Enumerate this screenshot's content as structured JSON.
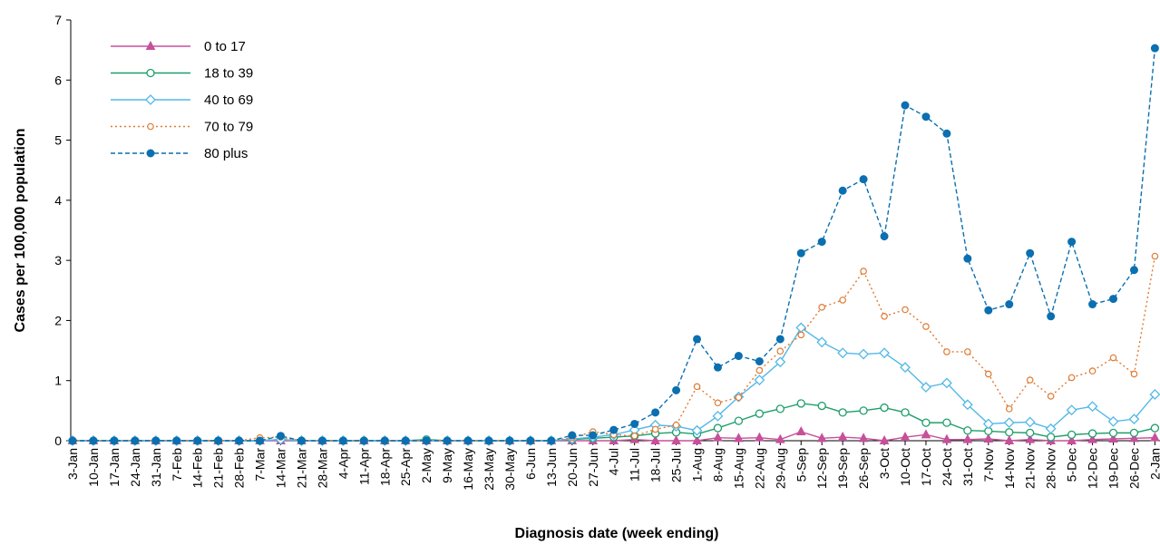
{
  "chart_data": {
    "type": "line",
    "title": "",
    "xlabel": "Diagnosis date (week ending)",
    "ylabel": "Cases per 100,000 population",
    "ylim": [
      0,
      7
    ],
    "yticks": [
      "0",
      "1",
      "2",
      "3",
      "4",
      "5",
      "6",
      "7"
    ],
    "grid": false,
    "legend_position": "top-left",
    "categories": [
      "3-Jan",
      "10-Jan",
      "17-Jan",
      "24-Jan",
      "31-Jan",
      "7-Feb",
      "14-Feb",
      "21-Feb",
      "28-Feb",
      "7-Mar",
      "14-Mar",
      "21-Mar",
      "28-Mar",
      "4-Apr",
      "11-Apr",
      "18-Apr",
      "25-Apr",
      "2-May",
      "9-May",
      "16-May",
      "23-May",
      "30-May",
      "6-Jun",
      "13-Jun",
      "20-Jun",
      "27-Jun",
      "4-Jul",
      "11-Jul",
      "18-Jul",
      "25-Jul",
      "1-Aug",
      "8-Aug",
      "15-Aug",
      "22-Aug",
      "29-Aug",
      "5-Sep",
      "12-Sep",
      "19-Sep",
      "26-Sep",
      "3-Oct",
      "10-Oct",
      "17-Oct",
      "24-Oct",
      "31-Oct",
      "7-Nov",
      "14-Nov",
      "21-Nov",
      "28-Nov",
      "5-Dec",
      "12-Dec",
      "19-Dec",
      "26-Dec",
      "2-Jan"
    ],
    "series": [
      {
        "name": "0 to 17",
        "color": "#c6509a",
        "marker": "triangle",
        "dash": "solid",
        "values": [
          0,
          0,
          0,
          0,
          0,
          0,
          0,
          0,
          0,
          0,
          0,
          0,
          0,
          0,
          0,
          0,
          0,
          0,
          0,
          0,
          0,
          0,
          0,
          0,
          0,
          0,
          0,
          0.02,
          0,
          0,
          0,
          0.05,
          0.04,
          0.05,
          0.02,
          0.15,
          0.04,
          0.06,
          0.04,
          0,
          0.06,
          0.1,
          0.02,
          0.02,
          0.03,
          0,
          0.02,
          0,
          0,
          0.02,
          0.03,
          0.04,
          0.05
        ]
      },
      {
        "name": "18 to 39",
        "color": "#1e9e6a",
        "marker": "circle-open",
        "dash": "solid",
        "values": [
          0,
          0,
          0,
          0,
          0,
          0,
          0,
          0,
          0,
          0,
          0.02,
          0,
          0,
          0,
          0,
          0,
          0,
          0.02,
          0,
          0,
          0,
          0,
          0,
          0,
          0.02,
          0.04,
          0.06,
          0.08,
          0.12,
          0.14,
          0.11,
          0.21,
          0.33,
          0.45,
          0.53,
          0.62,
          0.58,
          0.47,
          0.5,
          0.55,
          0.47,
          0.3,
          0.3,
          0.17,
          0.16,
          0.14,
          0.13,
          0.06,
          0.1,
          0.12,
          0.13,
          0.13,
          0.21
        ]
      },
      {
        "name": "40 to 69",
        "color": "#52b8e8",
        "marker": "diamond-open",
        "dash": "solid",
        "values": [
          0,
          0,
          0,
          0,
          0,
          0,
          0,
          0,
          0,
          0,
          0.02,
          0,
          0,
          0,
          0,
          0,
          0,
          0,
          0,
          0,
          0,
          0,
          0,
          0,
          0.03,
          0.06,
          0.1,
          0.18,
          0.26,
          0.24,
          0.17,
          0.41,
          0.73,
          1.01,
          1.31,
          1.88,
          1.64,
          1.46,
          1.44,
          1.46,
          1.22,
          0.89,
          0.96,
          0.6,
          0.28,
          0.3,
          0.31,
          0.2,
          0.51,
          0.57,
          0.32,
          0.36,
          0.77
        ]
      },
      {
        "name": "70 to 79",
        "color": "#e07a33",
        "marker": "circle-open-small",
        "dash": "dotted",
        "values": [
          0,
          0,
          0,
          0,
          0,
          0,
          0,
          0,
          0,
          0.05,
          0.06,
          0,
          0,
          0,
          0,
          0,
          0,
          0,
          0,
          0,
          0,
          0,
          0,
          0,
          0.05,
          0.15,
          0.1,
          0.08,
          0.19,
          0.26,
          0.9,
          0.63,
          0.72,
          1.17,
          1.49,
          1.76,
          2.22,
          2.34,
          2.82,
          2.07,
          2.18,
          1.9,
          1.48,
          1.48,
          1.11,
          0.53,
          1.01,
          0.74,
          1.05,
          1.16,
          1.38,
          1.11,
          3.07
        ]
      },
      {
        "name": "80 plus",
        "color": "#0b6fb0",
        "marker": "circle-filled",
        "dash": "dashed",
        "values": [
          0,
          0,
          0,
          0,
          0,
          0,
          0,
          0,
          0,
          0,
          0.08,
          0,
          0,
          0,
          0,
          0,
          0,
          0,
          0,
          0,
          0,
          0,
          0,
          0,
          0.09,
          0.09,
          0.18,
          0.28,
          0.47,
          0.84,
          1.69,
          1.22,
          1.41,
          1.32,
          1.69,
          3.12,
          3.31,
          4.16,
          4.35,
          3.4,
          5.58,
          5.39,
          5.11,
          3.03,
          2.17,
          2.27,
          3.12,
          2.07,
          3.31,
          2.27,
          2.36,
          2.84,
          6.53
        ]
      }
    ]
  }
}
